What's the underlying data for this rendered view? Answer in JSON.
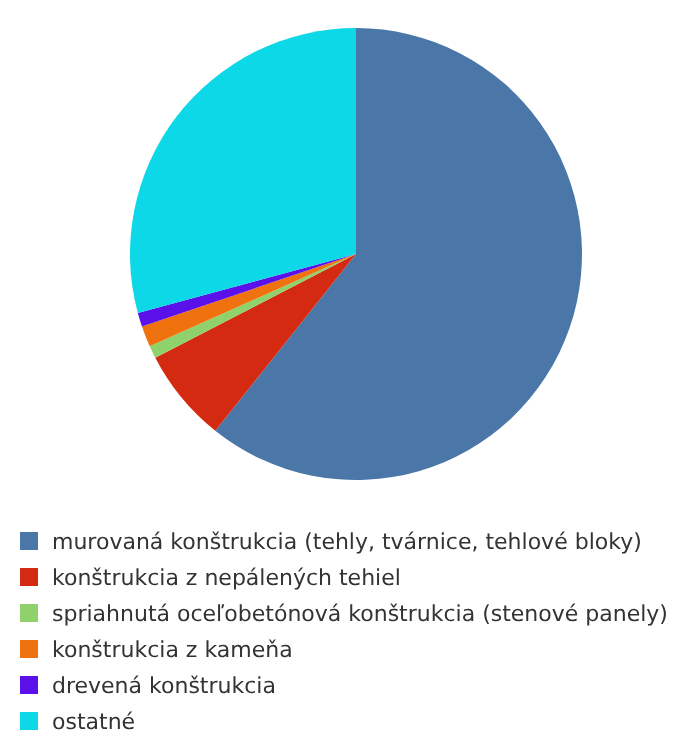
{
  "chart_data": {
    "type": "pie",
    "categories": [
      "murovaná konštrukcia (tehly, tvárnice, tehlové bloky)",
      "konštrukcia z nepálených tehiel",
      "spriahnutá oceľobetónová konštrukcia (stenové panely)",
      "konštrukcia z kameňa",
      "drevená konštrukcia",
      "ostatné"
    ],
    "values": [
      60.7,
      6.7,
      0.9,
      1.5,
      1.0,
      29.2
    ],
    "colors": [
      "#4a76a8",
      "#d42a12",
      "#8fd16a",
      "#f0720f",
      "#5a10e8",
      "#0cd8e8"
    ],
    "legend": "bottom"
  }
}
